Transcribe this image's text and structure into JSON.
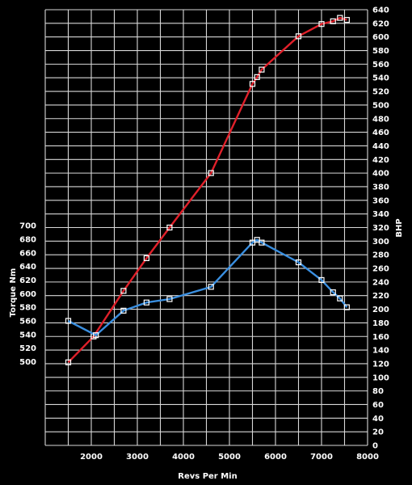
{
  "chart_data": {
    "type": "line",
    "xlabel": "Revs Per Min",
    "ylabel_left": "Torque Nm",
    "ylabel_right": "BHP",
    "xlim": [
      1000,
      8000
    ],
    "x_ticks": [
      2000,
      3000,
      4000,
      5000,
      6000,
      7000,
      8000
    ],
    "y_left_ticks": [
      500,
      520,
      540,
      560,
      580,
      600,
      620,
      640,
      660,
      680,
      700
    ],
    "y_right_ticks": [
      0,
      20,
      40,
      60,
      80,
      100,
      120,
      140,
      160,
      180,
      200,
      220,
      240,
      260,
      280,
      300,
      320,
      340,
      360,
      380,
      400,
      420,
      440,
      460,
      480,
      500,
      520,
      540,
      560,
      580,
      600,
      620,
      640
    ],
    "grid": true,
    "series": [
      {
        "name": "BHP",
        "axis": "right",
        "color": "#e0202a",
        "x": [
          1500,
          2050,
          2700,
          3200,
          3700,
          4600,
          5500,
          5600,
          5700,
          6500,
          7000,
          7250,
          7400,
          7550
        ],
        "y": [
          122,
          160,
          227,
          275,
          320,
          400,
          531,
          541,
          552,
          601,
          619,
          623,
          628,
          625
        ]
      },
      {
        "name": "Torque Nm",
        "axis": "left",
        "color": "#3a8fe0",
        "x": [
          1500,
          2100,
          2700,
          3200,
          3700,
          4600,
          5500,
          5600,
          5700,
          6500,
          7000,
          7250,
          7400,
          7550
        ],
        "y": [
          560,
          539,
          575,
          587,
          592,
          610,
          675,
          679,
          675,
          646,
          620,
          602,
          593,
          580
        ]
      }
    ]
  }
}
